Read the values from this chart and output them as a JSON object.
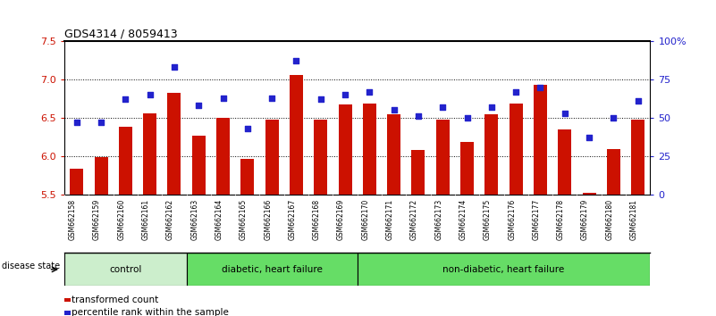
{
  "title": "GDS4314 / 8059413",
  "samples": [
    "GSM662158",
    "GSM662159",
    "GSM662160",
    "GSM662161",
    "GSM662162",
    "GSM662163",
    "GSM662164",
    "GSM662165",
    "GSM662166",
    "GSM662167",
    "GSM662168",
    "GSM662169",
    "GSM662170",
    "GSM662171",
    "GSM662172",
    "GSM662173",
    "GSM662174",
    "GSM662175",
    "GSM662176",
    "GSM662177",
    "GSM662178",
    "GSM662179",
    "GSM662180",
    "GSM662181"
  ],
  "bar_values": [
    5.83,
    5.99,
    6.38,
    6.56,
    6.82,
    6.26,
    6.5,
    5.96,
    6.47,
    7.06,
    6.47,
    6.67,
    6.68,
    6.54,
    6.08,
    6.47,
    6.18,
    6.54,
    6.68,
    6.93,
    6.35,
    5.52,
    6.09,
    6.48
  ],
  "dot_values_pct": [
    47,
    47,
    62,
    65,
    83,
    58,
    63,
    43,
    63,
    87,
    62,
    65,
    67,
    55,
    51,
    57,
    50,
    57,
    67,
    70,
    53,
    37,
    50,
    61
  ],
  "ylim_left": [
    5.5,
    7.5
  ],
  "yticks_left": [
    5.5,
    6.0,
    6.5,
    7.0,
    7.5
  ],
  "yticks_right": [
    0,
    25,
    50,
    75,
    100
  ],
  "bar_color": "#CC1100",
  "dot_color": "#2222CC",
  "bg_color": "#FFFFFF",
  "tick_label_bg": "#CCCCCC",
  "groups": [
    {
      "label": "control",
      "start": 0,
      "end": 4,
      "color": "#CCEECC"
    },
    {
      "label": "diabetic, heart failure",
      "start": 5,
      "end": 11,
      "color": "#66DD66"
    },
    {
      "label": "non-diabetic, heart failure",
      "start": 12,
      "end": 23,
      "color": "#66DD66"
    }
  ],
  "grid_yticks": [
    6.0,
    6.5,
    7.0
  ],
  "disease_state_label": "disease state",
  "legend_labels": [
    "transformed count",
    "percentile rank within the sample"
  ]
}
